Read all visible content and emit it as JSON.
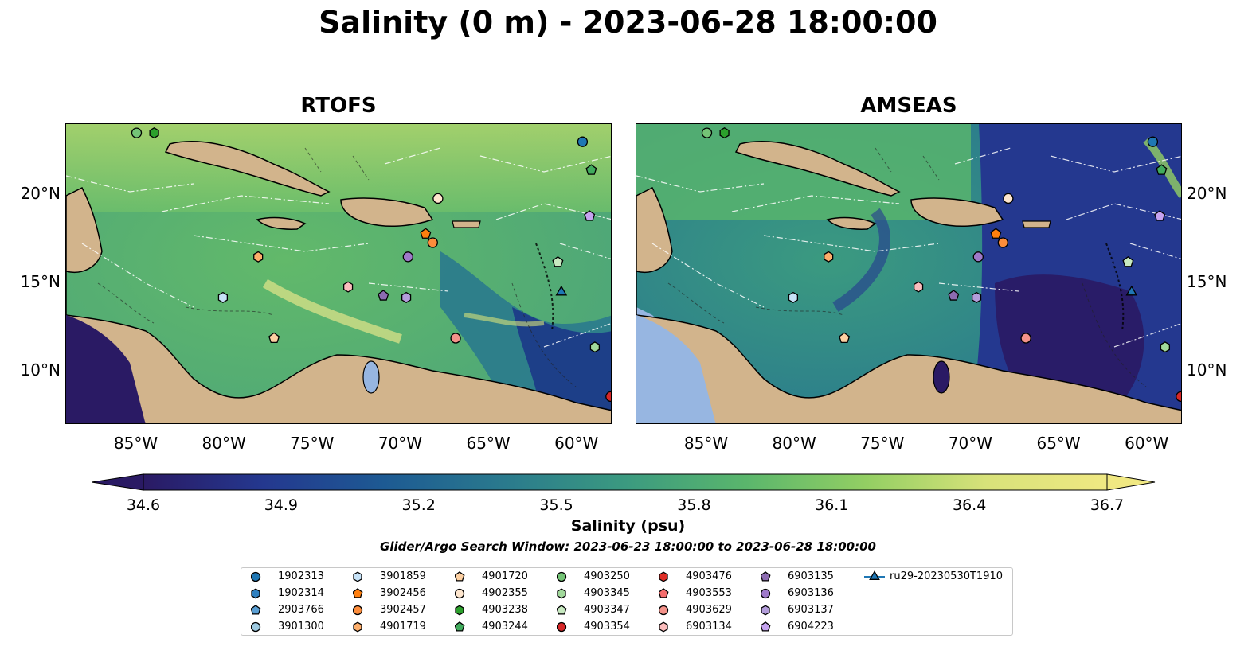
{
  "title": "Salinity (0 m) - 2023-06-28 18:00:00",
  "panels": [
    {
      "name": "RTOFS"
    },
    {
      "name": "AMSEAS"
    }
  ],
  "map_extent": {
    "lon_min": -89,
    "lon_max": -58,
    "lat_min": 7,
    "lat_max": 24
  },
  "lon_ticks": [
    "85°W",
    "80°W",
    "75°W",
    "70°W",
    "65°W",
    "60°W"
  ],
  "lat_ticks": [
    "20°N",
    "15°N",
    "10°N"
  ],
  "colorbar": {
    "label": "Salinity (psu)",
    "ticks": [
      "34.6",
      "34.9",
      "35.2",
      "35.5",
      "35.8",
      "36.1",
      "36.4",
      "36.7"
    ],
    "min": 34.6,
    "max": 36.7,
    "colormap": [
      "#2a1a64",
      "#24388f",
      "#1d5a93",
      "#2a7a8d",
      "#3b9a80",
      "#5ab66c",
      "#93cf63",
      "#d8e27a",
      "#f0e882"
    ],
    "extend": "both"
  },
  "search_window": "Glider/Argo Search Window: 2023-06-23 18:00:00 to 2023-06-28 18:00:00",
  "colors": {
    "land": "#d2b48c",
    "ocean_lake": "#97b6e1",
    "river": "#97b6e1"
  },
  "platforms": [
    {
      "id": "1902313",
      "marker": "circle",
      "color": "#1f77b4",
      "lon": -59.7,
      "lat": 23.0
    },
    {
      "id": "1902314",
      "marker": "hexagon",
      "color": "#2f80c0"
    },
    {
      "id": "2903766",
      "marker": "pentagon",
      "color": "#5a9fd4"
    },
    {
      "id": "3901300",
      "marker": "circle",
      "color": "#9ecae1"
    },
    {
      "id": "3901859",
      "marker": "hexagon",
      "color": "#c6e2f7",
      "lon": -80.1,
      "lat": 14.2
    },
    {
      "id": "3902456",
      "marker": "pentagon",
      "color": "#ff7f0e",
      "lon": -68.6,
      "lat": 17.8
    },
    {
      "id": "3902457",
      "marker": "circle",
      "color": "#fd8d3c",
      "lon": -68.2,
      "lat": 17.3
    },
    {
      "id": "4901719",
      "marker": "hexagon",
      "color": "#fdae6b",
      "lon": -78.1,
      "lat": 16.5
    },
    {
      "id": "4901720",
      "marker": "pentagon",
      "color": "#fdd0a2",
      "lon": -77.2,
      "lat": 11.9
    },
    {
      "id": "4902355",
      "marker": "circle",
      "color": "#fee6ce",
      "lon": -67.9,
      "lat": 19.8
    },
    {
      "id": "4903238",
      "marker": "hexagon",
      "color": "#2ca02c",
      "lon": -84.0,
      "lat": 23.5
    },
    {
      "id": "4903244",
      "marker": "pentagon",
      "color": "#41ab5d",
      "lon": -59.2,
      "lat": 21.4
    },
    {
      "id": "4903250",
      "marker": "circle",
      "color": "#74c476",
      "lon": -85.0,
      "lat": 23.5
    },
    {
      "id": "4903345",
      "marker": "hexagon",
      "color": "#a1d99b",
      "lon": -59.0,
      "lat": 11.4
    },
    {
      "id": "4903347",
      "marker": "pentagon",
      "color": "#c7e9c0",
      "lon": -61.1,
      "lat": 16.2
    },
    {
      "id": "4903354",
      "marker": "circle",
      "color": "#d62728",
      "lon": -58.1,
      "lat": 8.6
    },
    {
      "id": "4903476",
      "marker": "hexagon",
      "color": "#de2d26"
    },
    {
      "id": "4903553",
      "marker": "pentagon",
      "color": "#f46d6d"
    },
    {
      "id": "4903629",
      "marker": "circle",
      "color": "#f4928a",
      "lon": -66.9,
      "lat": 11.9
    },
    {
      "id": "6903134",
      "marker": "hexagon",
      "color": "#fcbdbd",
      "lon": -73.0,
      "lat": 14.8
    },
    {
      "id": "6903135",
      "marker": "pentagon",
      "color": "#8c6bb1",
      "lon": -71.0,
      "lat": 14.3
    },
    {
      "id": "6903136",
      "marker": "circle",
      "color": "#9e79c9",
      "lon": -69.6,
      "lat": 16.5
    },
    {
      "id": "6903137",
      "marker": "hexagon",
      "color": "#b39ddb",
      "lon": -69.7,
      "lat": 14.2
    },
    {
      "id": "6904223",
      "marker": "pentagon",
      "color": "#c5a3f0",
      "lon": -59.3,
      "lat": 18.8
    },
    {
      "id": "ru29-20230530T1910",
      "marker": "triangle-line",
      "color": "#1f77b4",
      "lon": -60.9,
      "lat": 14.5
    }
  ]
}
